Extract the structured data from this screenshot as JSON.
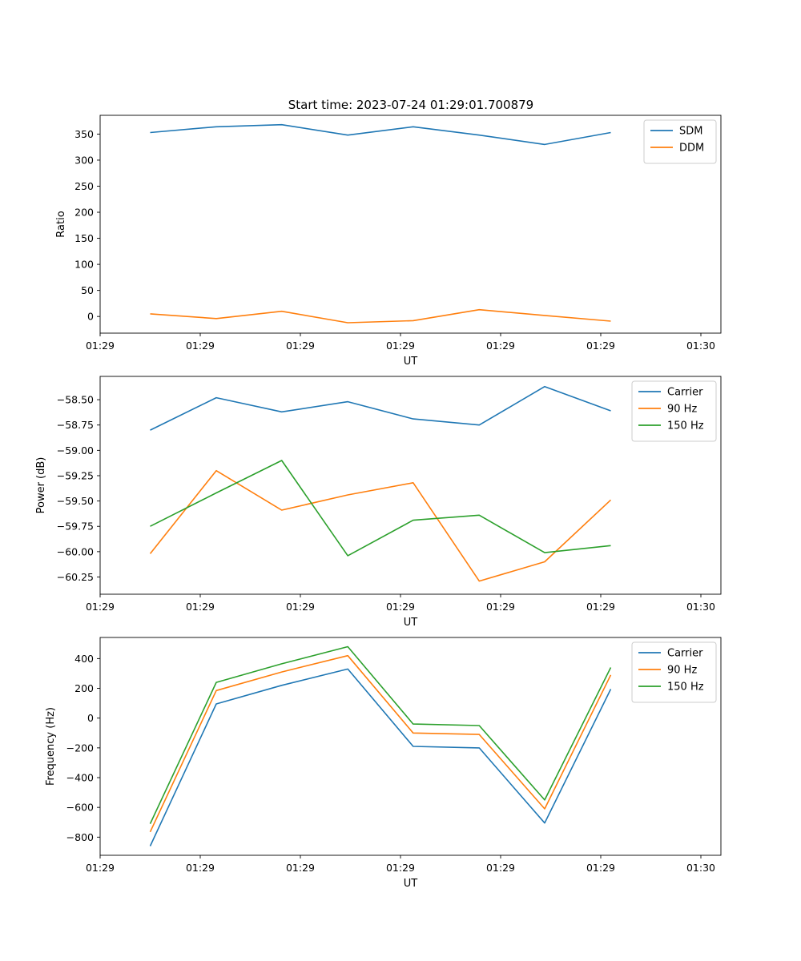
{
  "title": "Start time: 2023-07-24 01:29:01.700879",
  "chart_data": [
    {
      "type": "line",
      "ylabel": "Ratio",
      "xlabel": "UT",
      "xlim": [
        0,
        9.3
      ],
      "ylim": [
        -32,
        386
      ],
      "yticks": [
        0,
        50,
        100,
        150,
        200,
        250,
        300,
        350
      ],
      "ytick_labels": [
        "0",
        "50",
        "100",
        "150",
        "200",
        "250",
        "300",
        "350"
      ],
      "xticks": [
        0,
        1.5,
        3,
        4.5,
        6,
        7.5,
        9
      ],
      "xtick_labels": [
        "01:29",
        "01:29",
        "01:29",
        "01:29",
        "01:29",
        "01:29",
        "01:30"
      ],
      "x": [
        0.75,
        1.74,
        2.72,
        3.71,
        4.69,
        5.68,
        6.66,
        7.65
      ],
      "legend": "top-right",
      "series": [
        {
          "name": "SDM",
          "color": "#1f77b4",
          "values": [
            353,
            364,
            368,
            348,
            364,
            348,
            330,
            353
          ]
        },
        {
          "name": "DDM",
          "color": "#ff7f0e",
          "values": [
            5,
            -4,
            10,
            -12,
            -8,
            13,
            2,
            -9
          ]
        }
      ]
    },
    {
      "type": "line",
      "ylabel": "Power (dB)",
      "xlabel": "UT",
      "xlim": [
        0,
        9.3
      ],
      "ylim": [
        -60.42,
        -58.27
      ],
      "yticks": [
        -58.5,
        -58.75,
        -59.0,
        -59.25,
        -59.5,
        -59.75,
        -60.0,
        -60.25
      ],
      "ytick_labels": [
        "−58.50",
        "−58.75",
        "−59.00",
        "−59.25",
        "−59.50",
        "−59.75",
        "−60.00",
        "−60.25"
      ],
      "xticks": [
        0,
        1.5,
        3,
        4.5,
        6,
        7.5,
        9
      ],
      "xtick_labels": [
        "01:29",
        "01:29",
        "01:29",
        "01:29",
        "01:29",
        "01:29",
        "01:30"
      ],
      "x": [
        0.75,
        1.74,
        2.72,
        3.71,
        4.69,
        5.68,
        6.66,
        7.65
      ],
      "legend": "top-right",
      "series": [
        {
          "name": "Carrier",
          "color": "#1f77b4",
          "values": [
            -58.8,
            -58.48,
            -58.62,
            -58.52,
            -58.69,
            -58.75,
            -58.37,
            -58.61
          ]
        },
        {
          "name": "90 Hz",
          "color": "#ff7f0e",
          "values": [
            -60.02,
            -59.2,
            -59.59,
            -59.44,
            -59.32,
            -60.29,
            -60.1,
            -59.49
          ]
        },
        {
          "name": "150 Hz",
          "color": "#2ca02c",
          "values": [
            -59.75,
            -59.42,
            -59.1,
            -60.04,
            -59.69,
            -59.64,
            -60.01,
            -59.94
          ]
        }
      ]
    },
    {
      "type": "line",
      "ylabel": "Frequency (Hz)",
      "xlabel": "UT",
      "xlim": [
        0,
        9.3
      ],
      "ylim": [
        -922,
        542
      ],
      "yticks": [
        400,
        200,
        0,
        -200,
        -400,
        -600,
        -800
      ],
      "ytick_labels": [
        "400",
        "200",
        "0",
        "−200",
        "−400",
        "−600",
        "−800"
      ],
      "xticks": [
        0,
        1.5,
        3,
        4.5,
        6,
        7.5,
        9
      ],
      "xtick_labels": [
        "01:29",
        "01:29",
        "01:29",
        "01:29",
        "01:29",
        "01:29",
        "01:30"
      ],
      "x": [
        0.75,
        1.74,
        2.72,
        3.71,
        4.69,
        5.68,
        6.66,
        7.65
      ],
      "legend": "top-right",
      "series": [
        {
          "name": "Carrier",
          "color": "#1f77b4",
          "values": [
            -860,
            95,
            220,
            330,
            -190,
            -200,
            -705,
            195
          ]
        },
        {
          "name": "90 Hz",
          "color": "#ff7f0e",
          "values": [
            -765,
            185,
            310,
            420,
            -100,
            -110,
            -610,
            290
          ]
        },
        {
          "name": "150 Hz",
          "color": "#2ca02c",
          "values": [
            -710,
            240,
            365,
            480,
            -40,
            -50,
            -550,
            340
          ]
        }
      ]
    }
  ]
}
